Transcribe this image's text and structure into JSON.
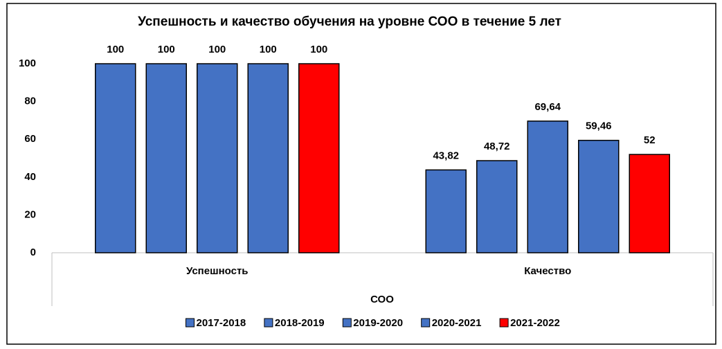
{
  "chart_data": {
    "type": "bar",
    "title": "Успешность и качество обучения на уровне СОО в течение 5 лет",
    "categories": [
      "Успешность",
      "Качество"
    ],
    "group_label": "СОО",
    "series": [
      {
        "name": "2017-2018",
        "color": "#4472c4",
        "values": [
          100,
          43.82
        ],
        "value_labels": [
          "100",
          "43,82"
        ]
      },
      {
        "name": "2018-2019",
        "color": "#4472c4",
        "values": [
          100,
          48.72
        ],
        "value_labels": [
          "100",
          "48,72"
        ]
      },
      {
        "name": "2019-2020",
        "color": "#4472c4",
        "values": [
          100,
          69.64
        ],
        "value_labels": [
          "100",
          "69,64"
        ]
      },
      {
        "name": "2020-2021",
        "color": "#4472c4",
        "values": [
          100,
          59.46
        ],
        "value_labels": [
          "100",
          "59,46"
        ]
      },
      {
        "name": "2021-2022",
        "color": "#ff0000",
        "values": [
          100,
          52
        ],
        "value_labels": [
          "100",
          "52"
        ]
      }
    ],
    "ylim": [
      0,
      100
    ],
    "yticks": [
      0,
      20,
      40,
      60,
      80,
      100
    ],
    "grid": false,
    "legend": "bottom"
  }
}
